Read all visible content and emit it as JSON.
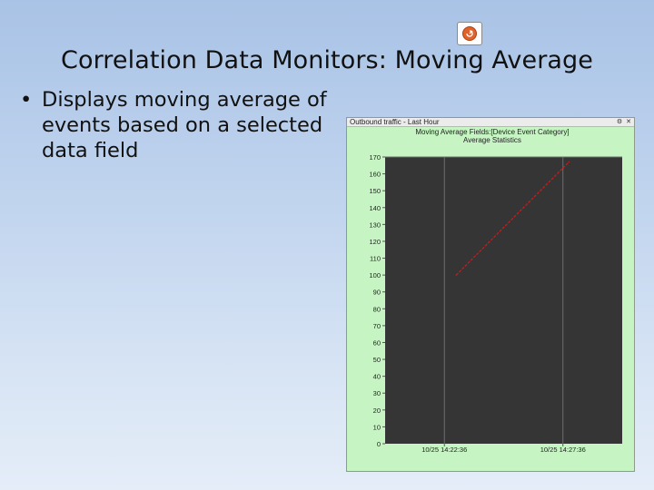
{
  "slide": {
    "title": "Correlation Data Monitors: Moving Average",
    "bullets": [
      "Displays moving average of events based on a selected data field"
    ],
    "icon": "report-icon"
  },
  "monitor_window": {
    "title": "Outbound traffic - Last Hour",
    "buttons": [
      "settings-icon",
      "close-icon"
    ]
  },
  "chart_data": {
    "type": "line",
    "title": "Moving Average Fields:[Device Event Category]",
    "subtitle": "Average Statistics",
    "xlabel": "",
    "ylabel": "",
    "ylim": [
      0,
      170
    ],
    "yticks": [
      0,
      10,
      20,
      30,
      40,
      50,
      60,
      70,
      80,
      90,
      100,
      110,
      120,
      130,
      140,
      150,
      160,
      170
    ],
    "xticks": [
      "10/25 14:22:36",
      "10/25 14:27:36"
    ],
    "grid": true,
    "plot_background": "#353535",
    "panel_background": "#c6f5c3",
    "series": [
      {
        "color": "#c11f1f",
        "points": [
          [
            0.6,
            100
          ],
          [
            1.55,
            167
          ]
        ]
      }
    ]
  }
}
